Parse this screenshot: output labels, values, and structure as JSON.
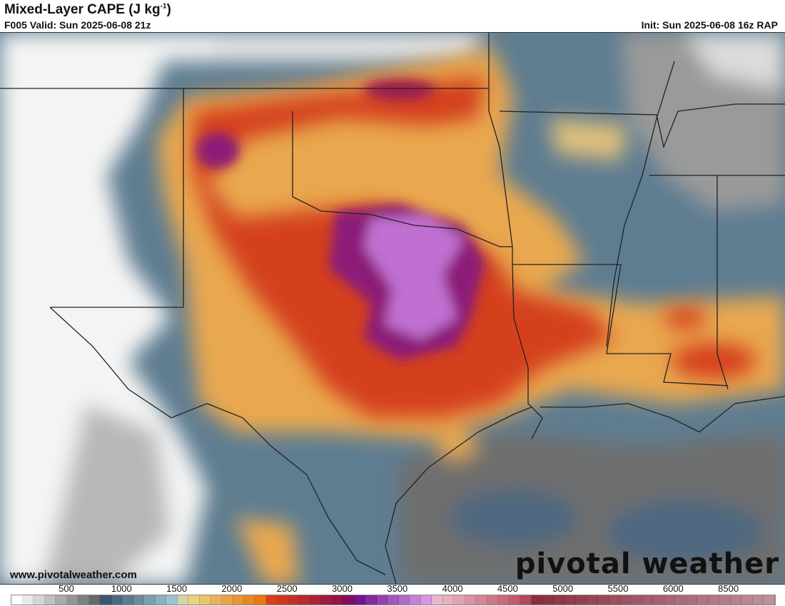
{
  "header": {
    "title": "Mixed-Layer CAPE (J kg",
    "title_sup": "-1",
    "title_close": ")",
    "valid": "F005 Valid: Sun 2025-06-08 21z",
    "init": "Init: Sun 2025-06-08 16z RAP"
  },
  "footer": {
    "website": "www.pivotalweather.com",
    "brand": "pivotal weather"
  },
  "colorbar": {
    "unit": "J kg-1",
    "tick_labels": [
      "500",
      "1000",
      "1500",
      "2000",
      "2500",
      "3000",
      "3500",
      "4000",
      "4500",
      "5000",
      "5500",
      "6000",
      "8500"
    ],
    "color_stops": [
      {
        "value": 0,
        "color": "#ffffff"
      },
      {
        "value": 900,
        "color": "#6e6e6e"
      },
      {
        "value": 1000,
        "color": "#34506b"
      },
      {
        "value": 1900,
        "color": "#a8ccd6"
      },
      {
        "value": 2000,
        "color": "#eadc8c"
      },
      {
        "value": 2900,
        "color": "#e8760c"
      },
      {
        "value": 3000,
        "color": "#dc4018"
      },
      {
        "value": 3900,
        "color": "#8c0c50"
      },
      {
        "value": 4000,
        "color": "#6c0c8c"
      },
      {
        "value": 4900,
        "color": "#dca0e8"
      },
      {
        "value": 5000,
        "color": "#ecbcc4"
      },
      {
        "value": 6000,
        "color": "#bc5068"
      },
      {
        "value": 6100,
        "color": "#8a2c40"
      },
      {
        "value": 8900,
        "color": "#c09098"
      }
    ]
  }
}
